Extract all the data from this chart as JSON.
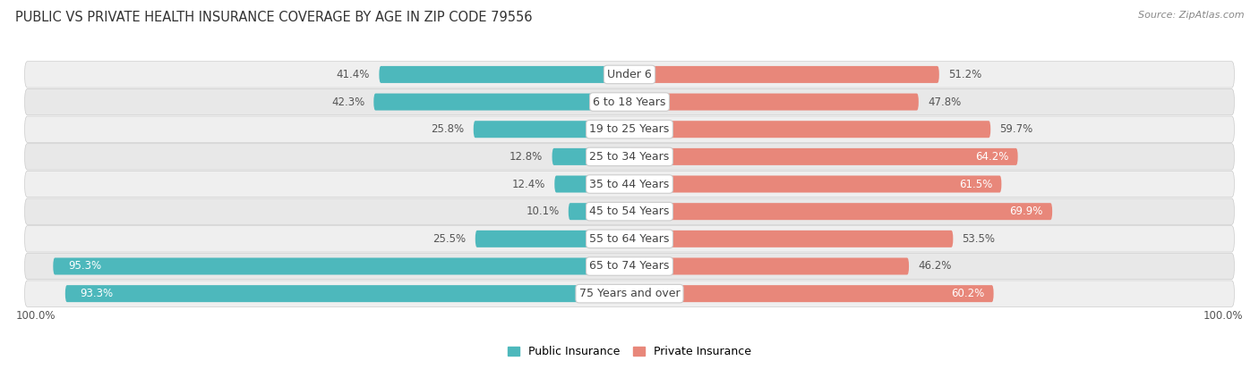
{
  "title": "PUBLIC VS PRIVATE HEALTH INSURANCE COVERAGE BY AGE IN ZIP CODE 79556",
  "source": "Source: ZipAtlas.com",
  "categories": [
    "Under 6",
    "6 to 18 Years",
    "19 to 25 Years",
    "25 to 34 Years",
    "35 to 44 Years",
    "45 to 54 Years",
    "55 to 64 Years",
    "65 to 74 Years",
    "75 Years and over"
  ],
  "public_values": [
    41.4,
    42.3,
    25.8,
    12.8,
    12.4,
    10.1,
    25.5,
    95.3,
    93.3
  ],
  "private_values": [
    51.2,
    47.8,
    59.7,
    64.2,
    61.5,
    69.9,
    53.5,
    46.2,
    60.2
  ],
  "public_color": "#4db8bc",
  "private_color": "#e8877a",
  "public_color_light": "#a8d8da",
  "private_color_light": "#f0b8b0",
  "row_bg": "#f0f0f0",
  "row_bg_alt": "#e6e6e6",
  "label_color_dark": "#555555",
  "label_color_white": "#ffffff",
  "axis_label_left": "100.0%",
  "axis_label_right": "100.0%",
  "max_value": 100.0,
  "title_fontsize": 10.5,
  "source_fontsize": 8,
  "bar_label_fontsize": 8.5,
  "category_fontsize": 9,
  "legend_fontsize": 9,
  "axis_fontsize": 8.5
}
